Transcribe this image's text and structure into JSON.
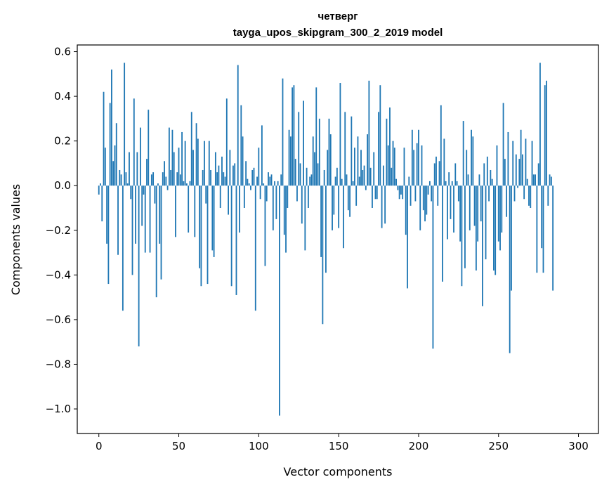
{
  "colors": {
    "bar": "#1f77b4",
    "axes": "#000000",
    "background": "#ffffff"
  },
  "chart_data": {
    "type": "bar",
    "title": "четверг",
    "subtitle": "tayga_upos_skipgram_300_2_2019 model",
    "xlabel": "Vector components",
    "ylabel": "Components values",
    "xlim": [
      -13.5,
      312.5
    ],
    "ylim": [
      -1.11,
      0.63
    ],
    "xticks": [
      0,
      50,
      100,
      150,
      200,
      250,
      300
    ],
    "xtick_labels": [
      "0",
      "50",
      "100",
      "150",
      "200",
      "250",
      "300"
    ],
    "yticks": [
      0.6,
      0.4,
      0.2,
      0.0,
      -0.2,
      -0.4,
      -0.6,
      -0.8,
      -1.0
    ],
    "ytick_labels": [
      "0.6",
      "0.4",
      "0.2",
      "0.0",
      "−0.2",
      "−0.4",
      "−0.6",
      "−0.8",
      "−1.0"
    ],
    "values": [
      -0.04,
      0.01,
      -0.16,
      0.42,
      0.17,
      -0.26,
      -0.44,
      0.37,
      0.52,
      0.11,
      0.18,
      0.28,
      -0.31,
      0.07,
      0.05,
      -0.56,
      0.55,
      0.06,
      0.01,
      0.15,
      -0.06,
      -0.4,
      0.39,
      -0.26,
      0.15,
      -0.72,
      0.26,
      -0.18,
      -0.04,
      -0.3,
      0.12,
      0.34,
      -0.3,
      0.05,
      0.06,
      -0.08,
      -0.5,
      0.01,
      -0.26,
      -0.42,
      0.06,
      0.11,
      0.04,
      -0.02,
      0.26,
      0.07,
      0.25,
      0.15,
      -0.23,
      0.06,
      0.17,
      0.05,
      0.24,
      0.02,
      0.2,
      0.01,
      -0.21,
      0.02,
      0.33,
      0.16,
      -0.23,
      0.28,
      0.21,
      -0.37,
      -0.45,
      0.07,
      0.2,
      -0.08,
      -0.44,
      0.2,
      0.07,
      -0.29,
      -0.32,
      0.15,
      0.06,
      0.09,
      -0.1,
      0.13,
      0.06,
      0.04,
      0.39,
      -0.13,
      0.16,
      -0.45,
      0.09,
      0.1,
      -0.49,
      0.54,
      -0.21,
      0.36,
      0.22,
      -0.1,
      0.11,
      0.03,
      0.01,
      -0.02,
      0.07,
      0.08,
      -0.56,
      0.04,
      0.17,
      -0.06,
      0.27,
      0.01,
      -0.36,
      -0.07,
      0.06,
      0.04,
      0.05,
      -0.2,
      0.02,
      -0.15,
      0.02,
      -1.03,
      0.05,
      0.48,
      -0.22,
      -0.3,
      -0.1,
      0.25,
      0.22,
      0.44,
      0.45,
      0.12,
      -0.07,
      0.33,
      0.1,
      -0.17,
      0.38,
      -0.29,
      0.08,
      -0.1,
      0.04,
      0.05,
      0.22,
      0.15,
      0.44,
      0.1,
      0.3,
      -0.32,
      -0.62,
      0.07,
      -0.39,
      0.16,
      0.3,
      0.23,
      -0.2,
      -0.13,
      0.04,
      0.08,
      -0.19,
      0.46,
      0.03,
      -0.28,
      0.33,
      0.05,
      -0.11,
      -0.14,
      0.31,
      0.02,
      0.17,
      -0.09,
      0.22,
      0.04,
      0.16,
      0.07,
      0.09,
      -0.02,
      0.23,
      0.47,
      0.08,
      -0.1,
      0.15,
      -0.06,
      -0.06,
      0.33,
      0.45,
      -0.19,
      0.09,
      -0.17,
      0.3,
      0.18,
      0.35,
      0.08,
      0.2,
      0.17,
      0.03,
      -0.02,
      -0.06,
      -0.04,
      -0.06,
      0.17,
      -0.22,
      -0.46,
      0.04,
      -0.09,
      0.25,
      0.16,
      -0.07,
      0.19,
      0.25,
      -0.2,
      0.18,
      -0.11,
      -0.16,
      -0.13,
      -0.04,
      0.02,
      -0.07,
      -0.73,
      0.1,
      0.13,
      -0.09,
      0.11,
      0.36,
      -0.43,
      0.21,
      0.02,
      -0.24,
      0.06,
      -0.15,
      0.02,
      -0.21,
      0.1,
      0.02,
      -0.07,
      -0.25,
      -0.45,
      0.29,
      -0.37,
      0.16,
      0.05,
      -0.2,
      0.25,
      0.22,
      -0.18,
      -0.38,
      -0.25,
      0.05,
      -0.16,
      -0.54,
      0.1,
      -0.33,
      0.13,
      -0.07,
      0.07,
      0.03,
      -0.38,
      -0.4,
      0.18,
      -0.25,
      -0.29,
      -0.21,
      0.37,
      0.12,
      -0.14,
      0.24,
      -0.75,
      -0.47,
      0.2,
      -0.07,
      0.14,
      -0.01,
      0.12,
      0.25,
      0.14,
      -0.06,
      0.21,
      0.03,
      -0.09,
      -0.1,
      0.2,
      0.05,
      0.05,
      -0.39,
      0.1,
      0.55,
      -0.28,
      -0.39,
      0.45,
      0.47,
      -0.09,
      0.05,
      0.04,
      -0.47
    ]
  }
}
